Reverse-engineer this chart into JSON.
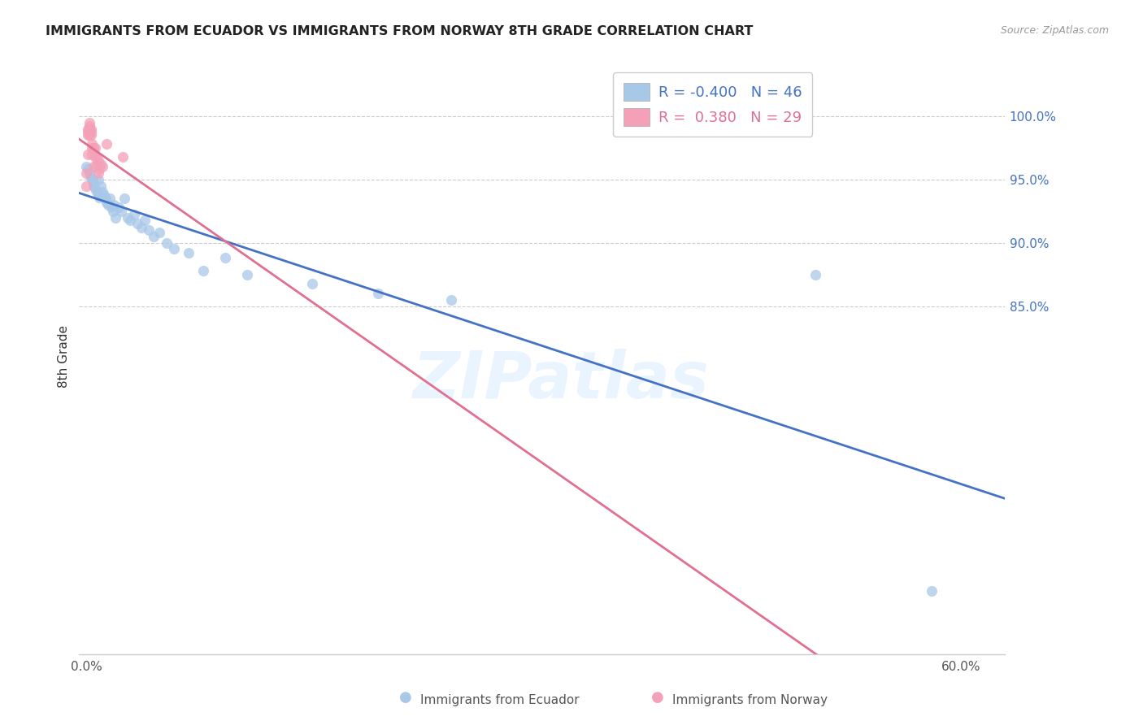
{
  "title": "IMMIGRANTS FROM ECUADOR VS IMMIGRANTS FROM NORWAY 8TH GRADE CORRELATION CHART",
  "source_text": "Source: ZipAtlas.com",
  "ylabel": "8th Grade",
  "xlim": [
    -0.005,
    0.63
  ],
  "ylim": [
    0.575,
    1.045
  ],
  "ecuador_R": -0.4,
  "ecuador_N": 46,
  "norway_R": 0.38,
  "norway_N": 29,
  "ecuador_color": "#a8c8e8",
  "norway_color": "#f4a0b8",
  "ecuador_line_color": "#4472c4",
  "norway_line_color": "#e07090",
  "legend_ecuador_label": "Immigrants from Ecuador",
  "legend_norway_label": "Immigrants from Norway",
  "ecuador_x": [
    0.0,
    0.001,
    0.002,
    0.003,
    0.004,
    0.005,
    0.005,
    0.006,
    0.007,
    0.008,
    0.008,
    0.009,
    0.01,
    0.011,
    0.012,
    0.013,
    0.014,
    0.015,
    0.016,
    0.017,
    0.018,
    0.019,
    0.02,
    0.022,
    0.024,
    0.026,
    0.028,
    0.03,
    0.033,
    0.035,
    0.038,
    0.04,
    0.043,
    0.046,
    0.05,
    0.055,
    0.06,
    0.07,
    0.08,
    0.095,
    0.11,
    0.155,
    0.2,
    0.25,
    0.5,
    0.58
  ],
  "ecuador_y": [
    0.96,
    0.958,
    0.955,
    0.952,
    0.95,
    0.948,
    0.945,
    0.943,
    0.94,
    0.95,
    0.938,
    0.936,
    0.945,
    0.94,
    0.938,
    0.935,
    0.932,
    0.93,
    0.935,
    0.928,
    0.925,
    0.93,
    0.92,
    0.928,
    0.925,
    0.935,
    0.92,
    0.918,
    0.922,
    0.915,
    0.912,
    0.918,
    0.91,
    0.905,
    0.908,
    0.9,
    0.895,
    0.892,
    0.878,
    0.888,
    0.875,
    0.868,
    0.86,
    0.855,
    0.875,
    0.625
  ],
  "norway_x": [
    0.0,
    0.0,
    0.001,
    0.001,
    0.001,
    0.001,
    0.002,
    0.002,
    0.002,
    0.002,
    0.003,
    0.003,
    0.003,
    0.004,
    0.004,
    0.004,
    0.005,
    0.005,
    0.006,
    0.006,
    0.007,
    0.007,
    0.008,
    0.008,
    0.009,
    0.01,
    0.011,
    0.014,
    0.025
  ],
  "norway_y": [
    0.955,
    0.945,
    0.985,
    0.99,
    0.988,
    0.97,
    0.992,
    0.995,
    0.99,
    0.985,
    0.99,
    0.988,
    0.985,
    0.978,
    0.975,
    0.97,
    0.975,
    0.96,
    0.968,
    0.975,
    0.962,
    0.968,
    0.955,
    0.965,
    0.958,
    0.962,
    0.96,
    0.978,
    0.968
  ],
  "watermark_text": "ZIPatlas",
  "grid_color": "#cccccc",
  "y_tick_positions": [
    0.85,
    0.9,
    0.95,
    1.0
  ],
  "y_tick_labels": [
    "85.0%",
    "90.0%",
    "95.0%",
    "100.0%"
  ],
  "x_tick_positions": [
    0.0,
    0.1,
    0.2,
    0.3,
    0.4,
    0.5,
    0.6
  ],
  "x_tick_labels": [
    "0.0%",
    "",
    "",
    "",
    "",
    "",
    "60.0%"
  ]
}
